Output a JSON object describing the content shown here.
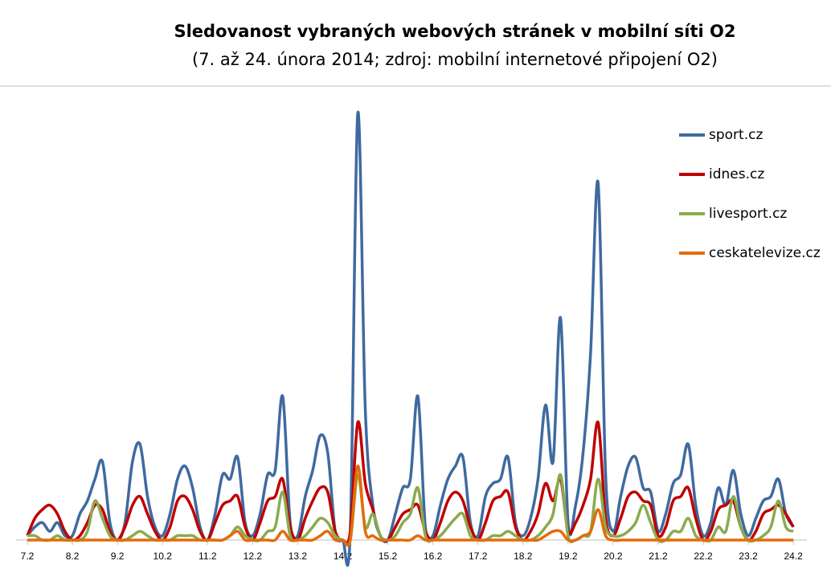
{
  "chart_data": {
    "type": "line",
    "title": "Sledovanost vybraných webových stránek v mobilní síti O2",
    "subtitle": "(7. až 24. února 2014; zdroj: mobilní internetové připojení O2)",
    "x": [
      7,
      7.167,
      7.333,
      7.5,
      7.667,
      7.833,
      8,
      8.167,
      8.333,
      8.5,
      8.667,
      8.833,
      9,
      9.167,
      9.333,
      9.5,
      9.667,
      9.833,
      10,
      10.167,
      10.333,
      10.5,
      10.667,
      10.833,
      11,
      11.167,
      11.333,
      11.5,
      11.667,
      11.833,
      12,
      12.167,
      12.333,
      12.5,
      12.667,
      12.833,
      13,
      13.167,
      13.333,
      13.5,
      13.667,
      13.833,
      14,
      14.167,
      14.333,
      14.5,
      14.667,
      14.833,
      15,
      15.167,
      15.333,
      15.5,
      15.667,
      15.833,
      16,
      16.167,
      16.333,
      16.5,
      16.667,
      16.833,
      17,
      17.167,
      17.333,
      17.5,
      17.667,
      17.833,
      18,
      18.167,
      18.333,
      18.5,
      18.667,
      18.833,
      19,
      19.167,
      19.333,
      19.5,
      19.667,
      19.833,
      20,
      20.167,
      20.333,
      20.5,
      20.667,
      20.833,
      21,
      21.167,
      21.333,
      21.5,
      21.667,
      21.833,
      22,
      22.167,
      22.333,
      22.5,
      22.667,
      22.833,
      23,
      23.167,
      23.333,
      23.5,
      23.667,
      23.833,
      24
    ],
    "xlim": [
      6.75,
      24.3
    ],
    "xticks": [
      {
        "value": 7,
        "label": "7.2"
      },
      {
        "value": 8,
        "label": "8.2"
      },
      {
        "value": 9,
        "label": "9.2"
      },
      {
        "value": 10,
        "label": "10.2"
      },
      {
        "value": 11,
        "label": "11.2"
      },
      {
        "value": 12,
        "label": "12.2"
      },
      {
        "value": 13,
        "label": "13.2"
      },
      {
        "value": 14,
        "label": "14.2"
      },
      {
        "value": 15,
        "label": "15.2"
      },
      {
        "value": 16,
        "label": "16.2"
      },
      {
        "value": 17,
        "label": "17.2"
      },
      {
        "value": 18,
        "label": "18.2"
      },
      {
        "value": 19,
        "label": "19.2"
      },
      {
        "value": 20,
        "label": "20.2"
      },
      {
        "value": 21,
        "label": "21.2"
      },
      {
        "value": 22,
        "label": "22.2"
      },
      {
        "value": 23,
        "label": "23.2"
      },
      {
        "value": 24,
        "label": "24.2"
      }
    ],
    "ylim": [
      0,
      100
    ],
    "grid": false,
    "legend": "right",
    "series": [
      {
        "name": "sport.cz",
        "color": "#3f6aa0",
        "values": [
          1,
          3,
          4,
          2,
          4,
          1,
          1,
          6,
          9,
          14,
          18,
          4,
          0,
          4,
          18,
          22,
          10,
          3,
          1,
          6,
          14,
          17,
          12,
          3,
          0,
          6,
          15,
          14,
          19,
          4,
          1,
          6,
          15,
          16,
          33,
          4,
          1,
          10,
          16,
          24,
          20,
          2,
          0,
          2,
          98,
          30,
          8,
          1,
          0,
          6,
          12,
          14,
          33,
          3,
          1,
          8,
          14,
          17,
          19,
          4,
          1,
          10,
          13,
          14,
          19,
          4,
          1,
          5,
          14,
          31,
          18,
          51,
          4,
          8,
          20,
          43,
          82,
          15,
          2,
          10,
          17,
          19,
          12,
          11,
          2,
          6,
          13,
          15,
          22,
          8,
          1,
          4,
          12,
          8,
          16,
          6,
          1,
          5,
          9,
          10,
          14,
          6,
          3
        ]
      },
      {
        "name": "idnes.cz",
        "color": "#c00000",
        "values": [
          1,
          5,
          7,
          8,
          6,
          2,
          0,
          1,
          4,
          8,
          7,
          2,
          0,
          3,
          8,
          10,
          6,
          2,
          0,
          3,
          9,
          10,
          7,
          2,
          0,
          4,
          8,
          9,
          10,
          3,
          0,
          4,
          9,
          10,
          14,
          3,
          0,
          5,
          9,
          12,
          11,
          2,
          0,
          2,
          27,
          13,
          7,
          1,
          0,
          3,
          6,
          7,
          8,
          2,
          0,
          4,
          9,
          11,
          9,
          3,
          0,
          4,
          9,
          10,
          11,
          3,
          0,
          2,
          6,
          13,
          9,
          14,
          2,
          4,
          8,
          14,
          27,
          5,
          1,
          5,
          10,
          11,
          9,
          8,
          1,
          3,
          9,
          10,
          12,
          5,
          0,
          2,
          7,
          8,
          9,
          3,
          0,
          2,
          6,
          7,
          8,
          6,
          3
        ]
      },
      {
        "name": "livesport.cz",
        "color": "#8aab4f",
        "values": [
          1,
          1,
          0,
          0,
          1,
          0,
          0,
          0,
          2,
          9,
          5,
          1,
          0,
          0,
          1,
          2,
          1,
          0,
          0,
          0,
          1,
          1,
          1,
          0,
          0,
          0,
          0,
          1,
          3,
          1,
          0,
          0,
          2,
          3,
          11,
          1,
          0,
          1,
          3,
          5,
          4,
          1,
          0,
          0,
          15,
          3,
          6,
          1,
          0,
          1,
          4,
          6,
          12,
          1,
          0,
          1,
          3,
          5,
          6,
          1,
          0,
          0,
          1,
          1,
          2,
          1,
          0,
          0,
          1,
          3,
          6,
          15,
          1,
          0,
          1,
          2,
          14,
          3,
          1,
          1,
          2,
          4,
          8,
          4,
          0,
          0,
          2,
          2,
          5,
          1,
          0,
          0,
          3,
          2,
          10,
          3,
          0,
          0,
          1,
          3,
          9,
          3,
          2
        ]
      },
      {
        "name": "ceskatelevize.cz",
        "color": "#e46c0a",
        "values": [
          0,
          0,
          0,
          0,
          0,
          0,
          0,
          0,
          0,
          0,
          0,
          0,
          0,
          0,
          0,
          0,
          0,
          0,
          0,
          0,
          0,
          0,
          0,
          0,
          0,
          0,
          0,
          1,
          2,
          0,
          0,
          0,
          0,
          0,
          2,
          0,
          0,
          0,
          0,
          1,
          2,
          0,
          0,
          0,
          17,
          2,
          1,
          0,
          0,
          0,
          0,
          0,
          1,
          0,
          0,
          0,
          0,
          0,
          0,
          0,
          0,
          0,
          0,
          0,
          0,
          0,
          0,
          0,
          0,
          1,
          2,
          2,
          0,
          0,
          1,
          2,
          7,
          1,
          0,
          0,
          0,
          0,
          0,
          0,
          0,
          0,
          0,
          0,
          0,
          0,
          0,
          0,
          0,
          0,
          0,
          0,
          0,
          0,
          0,
          0,
          0,
          0,
          0
        ]
      }
    ]
  }
}
